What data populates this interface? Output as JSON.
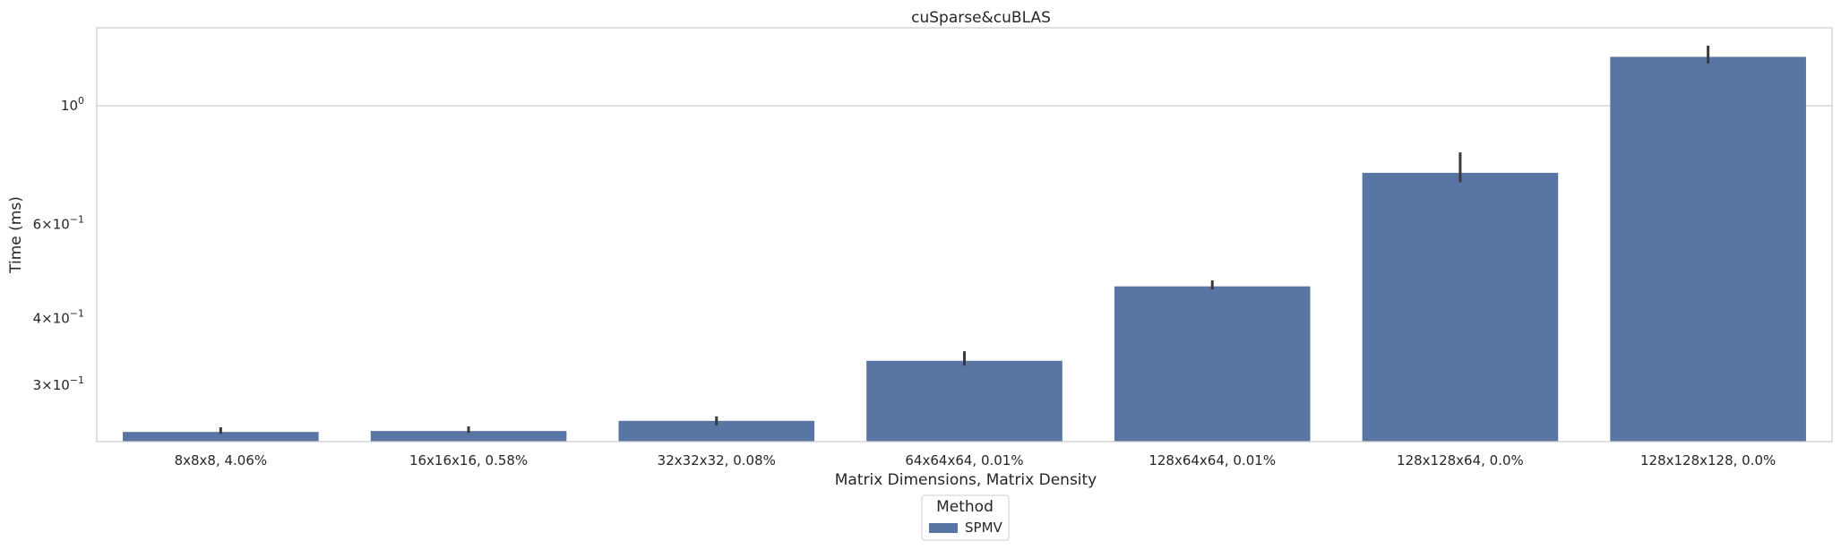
{
  "chart_data": {
    "type": "bar",
    "title": "cuSparse&cuBLAS",
    "xlabel": "Matrix Dimensions, Matrix Density",
    "ylabel": "Time (ms)",
    "yscale": "log",
    "ylim": [
      0.235,
      1.4
    ],
    "grid": "horizontal",
    "categories": [
      "8x8x8, 4.06%",
      "16x16x16, 0.58%",
      "32x32x32, 0.08%",
      "64x64x64, 0.01%",
      "128x64x64, 0.01%",
      "128x128x64, 0.0%",
      "128x128x128, 0.0%"
    ],
    "series": [
      {
        "name": "SPMV",
        "color": "#5875a4",
        "values": [
          0.245,
          0.246,
          0.257,
          0.333,
          0.459,
          0.749,
          1.235
        ],
        "err_low": [
          0.243,
          0.244,
          0.252,
          0.326,
          0.453,
          0.719,
          1.2
        ],
        "err_high": [
          0.25,
          0.251,
          0.262,
          0.347,
          0.471,
          0.818,
          1.296
        ]
      }
    ],
    "yticks": [
      {
        "value": 1.0,
        "base": "10",
        "exp": "0"
      },
      {
        "value": 0.6,
        "base": "6×10",
        "exp": "−1"
      },
      {
        "value": 0.4,
        "base": "4×10",
        "exp": "−1"
      },
      {
        "value": 0.3,
        "base": "3×10",
        "exp": "−1"
      }
    ],
    "legend": {
      "title": "Method",
      "placement": "bottom-center"
    }
  }
}
